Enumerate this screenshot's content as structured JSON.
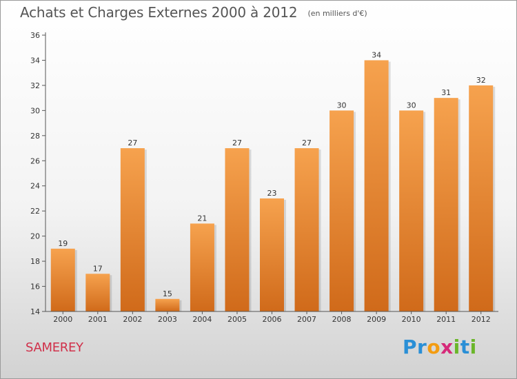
{
  "header": {
    "title": "Achats et Charges Externes 2000 à 2012",
    "unit": "(en milliers d'€)"
  },
  "footer": {
    "commune": "SAMEREY",
    "logo_letters": [
      {
        "char": "P",
        "color": "#2a8fd6"
      },
      {
        "char": "r",
        "color": "#2a8fd6"
      },
      {
        "char": "o",
        "color": "#f39c12"
      },
      {
        "char": "x",
        "color": "#d62a7a"
      },
      {
        "char": "i",
        "color": "#6bb62a"
      },
      {
        "char": "t",
        "color": "#2a8fd6"
      },
      {
        "char": "i",
        "color": "#6bb62a"
      }
    ]
  },
  "colors": {
    "bar_top": "#f6a24e",
    "bar_bottom": "#d06a1a",
    "axis": "#555555"
  },
  "chart_data": {
    "type": "bar",
    "categories": [
      "2000",
      "2001",
      "2002",
      "2003",
      "2004",
      "2005",
      "2006",
      "2007",
      "2008",
      "2009",
      "2010",
      "2011",
      "2012"
    ],
    "values": [
      19,
      17,
      27,
      15,
      21,
      27,
      23,
      27,
      30,
      34,
      30,
      31,
      32
    ],
    "ylim": [
      14,
      36
    ],
    "yticks": [
      14,
      16,
      18,
      20,
      22,
      24,
      26,
      28,
      30,
      32,
      34,
      36
    ],
    "grid": false,
    "legend": "none"
  }
}
